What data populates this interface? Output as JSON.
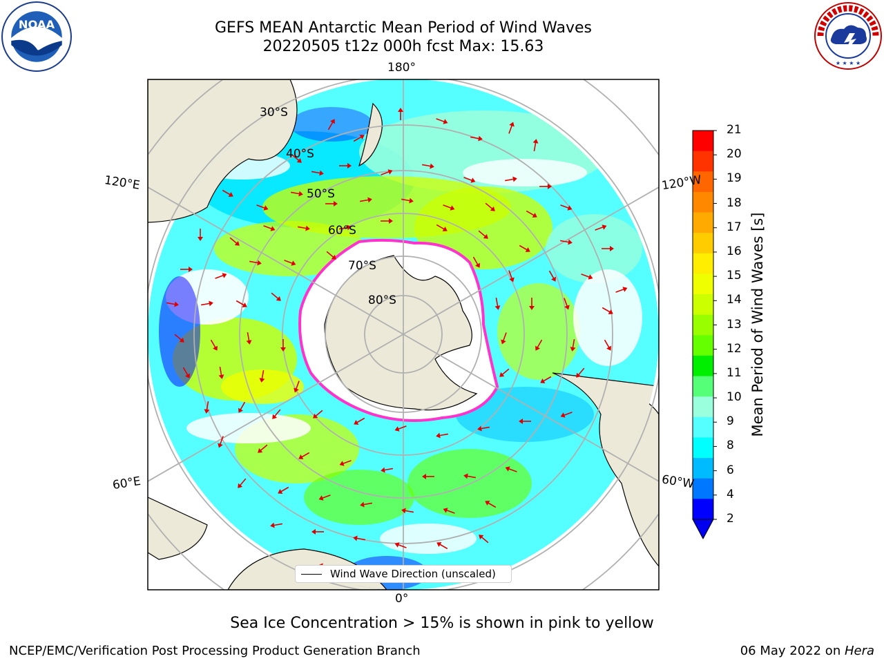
{
  "header": {
    "title_line1": "GEFS MEAN Antarctic Mean Period of Wind Waves",
    "title_line2": "20220505 t12z 000h fcst   Max: 15.63"
  },
  "logos": {
    "noaa": {
      "icon": "noaa-logo",
      "text": "NOAA",
      "ring_text": "NATIONAL OCEANIC AND ATMOSPHERIC ADMINISTRATION · U.S. DEPARTMENT OF COMMERCE"
    },
    "nws": {
      "icon": "nws-logo",
      "ring_text": "NATIONAL WEATHER SERVICE"
    }
  },
  "map": {
    "projection": "south polar stereographic",
    "longitude_labels": {
      "top": "180°",
      "bottom": "0°",
      "left_upper": "120°E",
      "left_lower": "60°E",
      "right_upper": "120°W",
      "right_lower": "60°W"
    },
    "latitude_labels": [
      "30°S",
      "40°S",
      "50°S",
      "60°S",
      "70°S",
      "80°S"
    ],
    "legend_label": "Wind Wave Direction (unscaled)",
    "colors": {
      "land": "#ece9d8",
      "ice": "#ffffff",
      "ice_edge": "#ff33cc",
      "arrow": "#e00000",
      "grid": "#b0b0b0"
    }
  },
  "colorbar": {
    "label": "Mean Period of Wind Waves [s]",
    "ticks": [
      "21",
      "20",
      "19",
      "18",
      "17",
      "16",
      "15",
      "14",
      "13",
      "12",
      "11",
      "10",
      "9",
      "8",
      "6",
      "4",
      "2"
    ],
    "colors": [
      "#ff0000",
      "#ff3300",
      "#ff6600",
      "#ff8800",
      "#ffaa00",
      "#ffcc00",
      "#ffee00",
      "#f0ff00",
      "#ccff00",
      "#99ff00",
      "#66ff00",
      "#00ee00",
      "#55ff77",
      "#99ffdd",
      "#55ffff",
      "#00ffff",
      "#00bbff",
      "#0077ff",
      "#0000ff"
    ],
    "extend_min_color": "#0000ee"
  },
  "footer": {
    "note": "Sea Ice Concentration > 15% is shown in pink to yellow",
    "branch": "NCEP/EMC/Verification Post Processing Product Generation Branch",
    "date_prefix": "06 May 2022 on ",
    "machine": "Hera"
  }
}
